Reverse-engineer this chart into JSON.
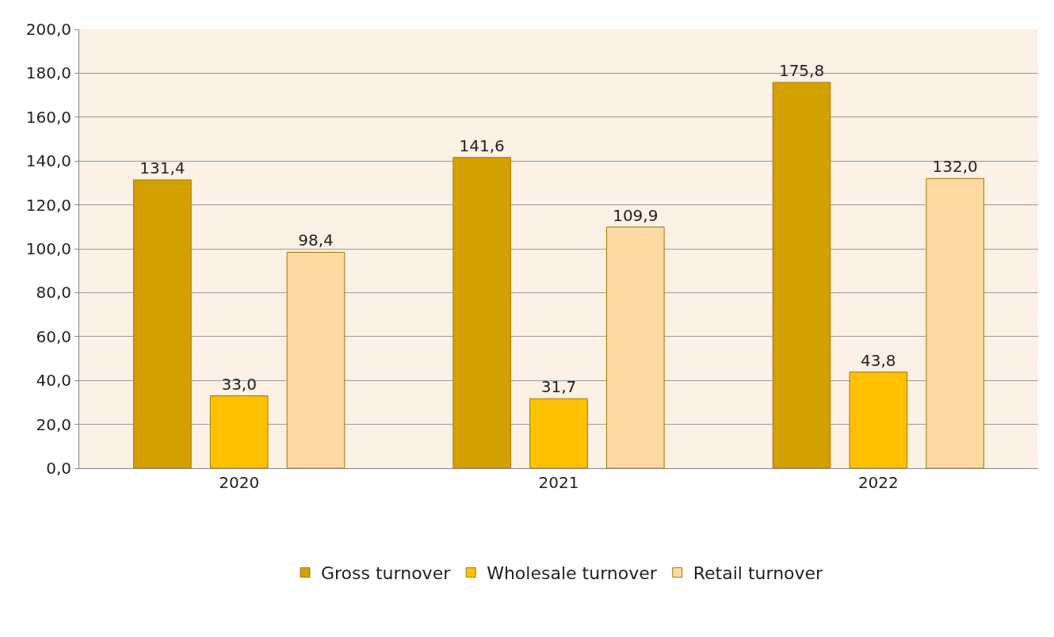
{
  "chart_data": {
    "type": "bar",
    "categories": [
      "2020",
      "2021",
      "2022"
    ],
    "series": [
      {
        "name": "Gross turnover",
        "color": "#d4a000",
        "values": [
          131.4,
          141.6,
          175.8
        ],
        "value_labels": [
          "131,4",
          "141,6",
          "175,8"
        ]
      },
      {
        "name": "Wholesale turnover",
        "color": "#ffc000",
        "values": [
          33.0,
          31.7,
          43.8
        ],
        "value_labels": [
          "33,0",
          "31,7",
          "43,8"
        ]
      },
      {
        "name": "Retail turnover",
        "color": "#fdd8a0",
        "values": [
          98.4,
          109.9,
          132.0
        ],
        "value_labels": [
          "98,4",
          "109,9",
          "132,0"
        ]
      }
    ],
    "ylim": [
      0,
      200
    ],
    "yticks": [
      {
        "value": 0,
        "label": "0,0"
      },
      {
        "value": 20,
        "label": "20,0"
      },
      {
        "value": 40,
        "label": "40,0"
      },
      {
        "value": 60,
        "label": "60,0"
      },
      {
        "value": 80,
        "label": "80,0"
      },
      {
        "value": 100,
        "label": "100,0"
      },
      {
        "value": 120,
        "label": "120,0"
      },
      {
        "value": 140,
        "label": "140,0"
      },
      {
        "value": 160,
        "label": "160,0"
      },
      {
        "value": 180,
        "label": "180,0"
      },
      {
        "value": 200,
        "label": "200,0"
      }
    ],
    "grid": "y",
    "legend": "bottom"
  }
}
